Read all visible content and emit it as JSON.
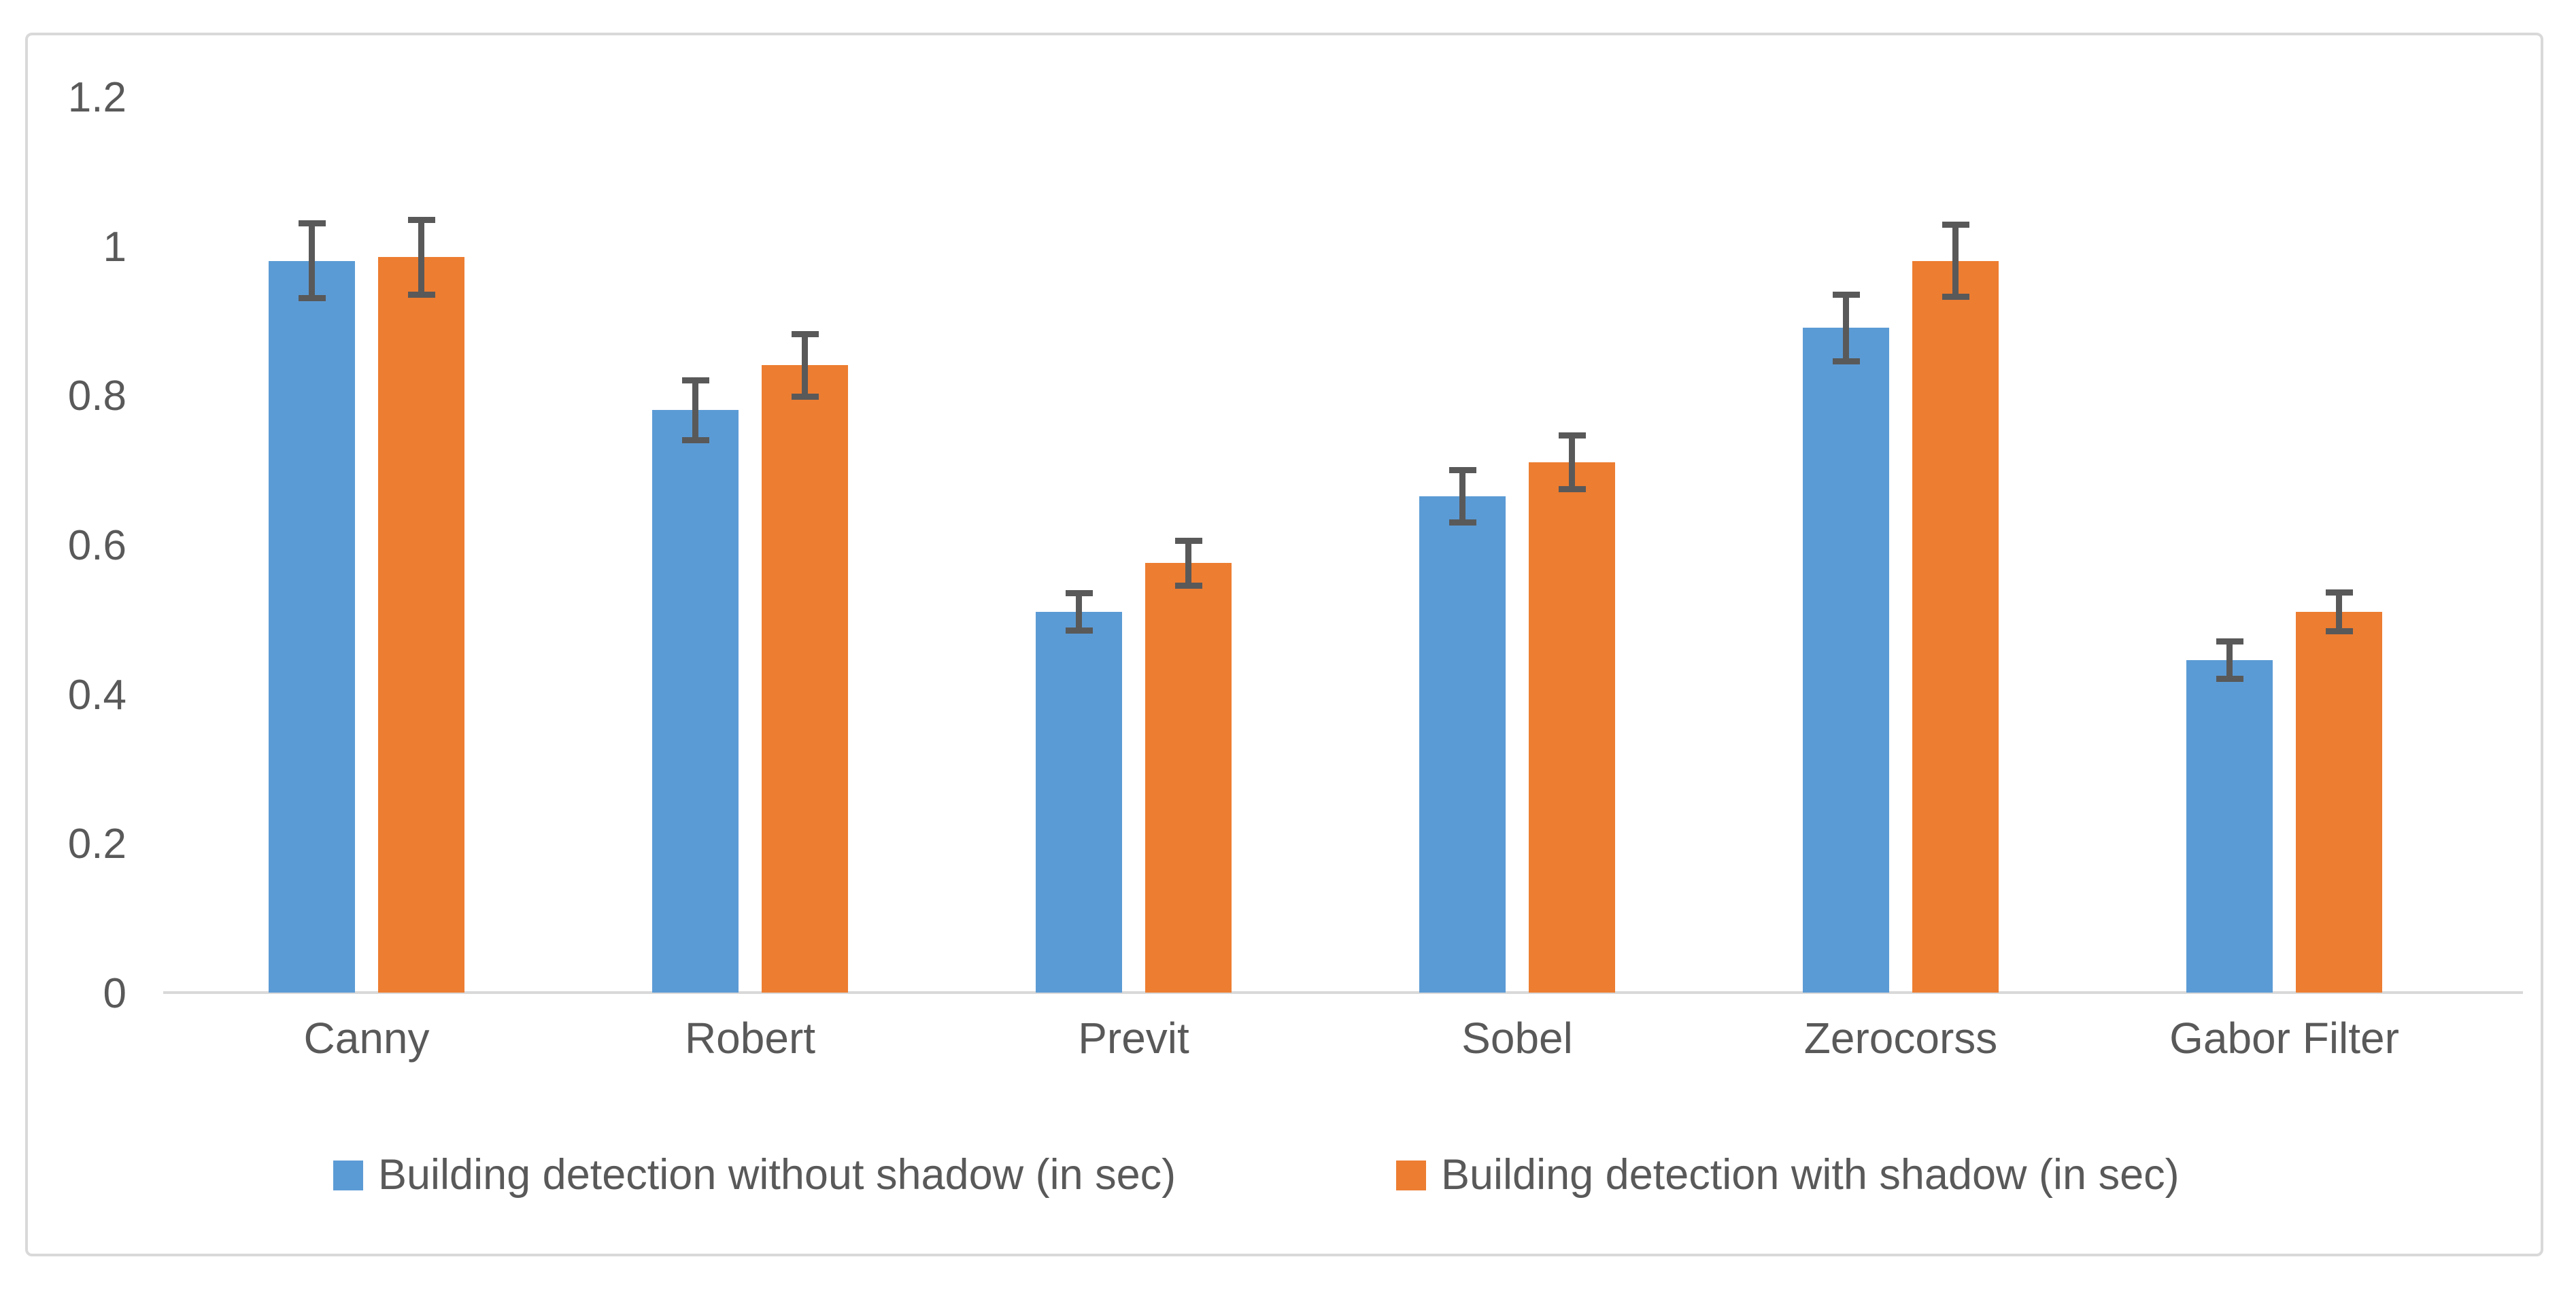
{
  "chart_data": {
    "type": "bar",
    "title": "",
    "categories": [
      "Canny",
      "Robert",
      "Previt",
      "Sobel",
      "Zerocorss",
      "Gabor Filter"
    ],
    "series": [
      {
        "name": "Building detection without shadow (in sec)",
        "color": "#5B9BD5",
        "values": [
          0.98,
          0.78,
          0.51,
          0.665,
          0.89,
          0.445
        ],
        "errors": [
          0.05,
          0.04,
          0.025,
          0.035,
          0.045,
          0.025
        ]
      },
      {
        "name": "Building detection with shadow (in sec)",
        "color": "#ED7D31",
        "values": [
          0.985,
          0.84,
          0.575,
          0.71,
          0.98,
          0.51
        ],
        "errors": [
          0.05,
          0.042,
          0.03,
          0.036,
          0.048,
          0.026
        ]
      }
    ],
    "y_ticks": [
      "1.2",
      "1",
      "0.8",
      "0.6",
      "0.4",
      "0.2",
      "0"
    ],
    "y_tick_values": [
      1.2,
      1.0,
      0.8,
      0.6,
      0.4,
      0.2,
      0
    ],
    "ylim": [
      0,
      1.2
    ],
    "grid": false,
    "legend_position": "bottom",
    "has_error_bars": true,
    "colors": {
      "error_bar": "#595959",
      "text": "#595959",
      "axis_line": "#d9d9d9",
      "frame_border": "#d9d9d9",
      "background": "#ffffff"
    }
  }
}
